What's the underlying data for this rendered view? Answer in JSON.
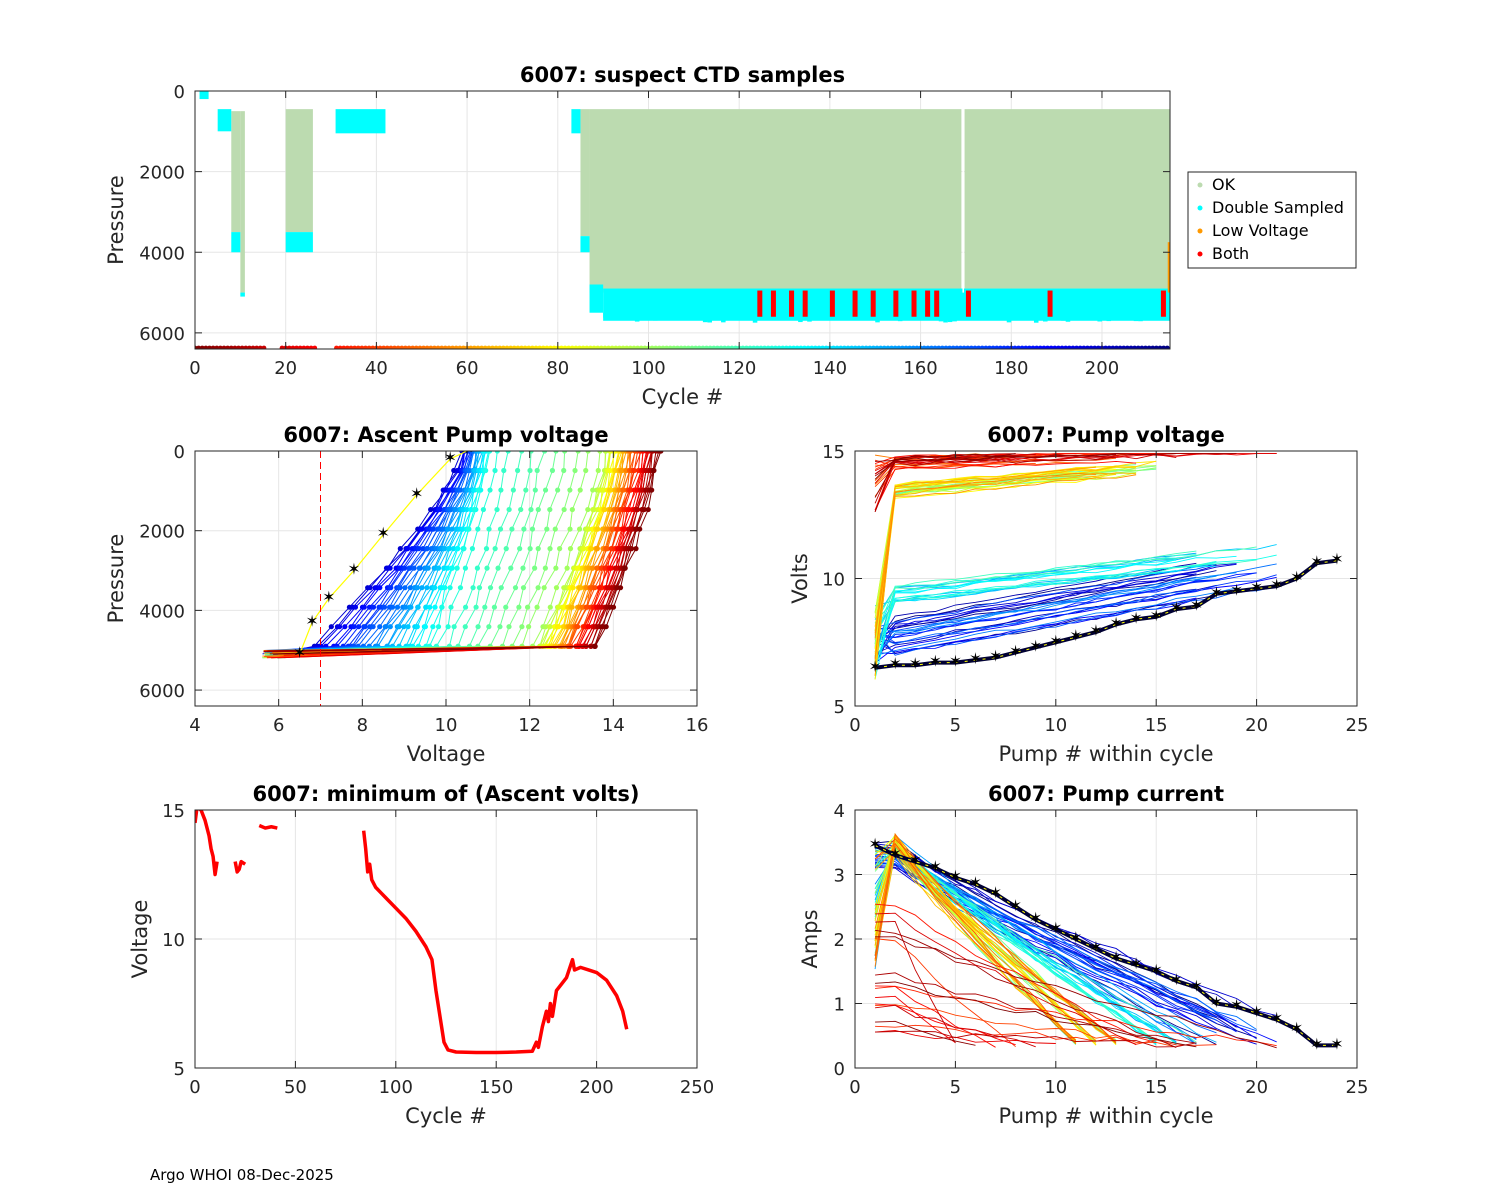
{
  "float_id": "6007",
  "footer": "Argo WHOI 08-Dec-2025",
  "colors": {
    "ok": "#bcdbb0",
    "double_sampled": "#00ffff",
    "low_voltage": "#ff9900",
    "both": "#ff0000",
    "min_volt_line": "#ff0000",
    "threshold": "#ff0000",
    "reference_marker": "#ffff00",
    "reference_line": "#000033"
  },
  "chart_data": [
    {
      "id": "suspect",
      "type": "scatter",
      "title": "6007: suspect CTD samples",
      "xlabel": "Cycle #",
      "ylabel": "Pressure",
      "xlim": [
        0,
        215
      ],
      "ylim": [
        6400,
        0
      ],
      "xticks": [
        0,
        20,
        40,
        60,
        80,
        100,
        120,
        140,
        160,
        180,
        200
      ],
      "yticks": [
        0,
        2000,
        4000,
        6000
      ],
      "ytick_labels": [
        "0",
        "2000",
        "4000",
        "6000"
      ],
      "legend": [
        "OK",
        "Double Sampled",
        "Low Voltage",
        "Both"
      ],
      "ok_bands": [
        [
          8,
          10,
          500,
          3500
        ],
        [
          10,
          11,
          500,
          5000
        ],
        [
          20,
          26,
          450,
          3500
        ],
        [
          85,
          87,
          450,
          3600
        ],
        [
          87,
          169,
          450,
          5000
        ],
        [
          169.7,
          215,
          450,
          4900
        ]
      ],
      "double_bands": [
        [
          1,
          3,
          0,
          200
        ],
        [
          5,
          8,
          450,
          1000
        ],
        [
          8,
          10,
          3500,
          4000
        ],
        [
          10,
          11,
          5000,
          5100
        ],
        [
          20,
          26,
          3500,
          4000
        ],
        [
          31,
          42,
          450,
          1050
        ],
        [
          83,
          85,
          450,
          1050
        ],
        [
          85,
          87,
          3600,
          4000
        ],
        [
          87,
          90,
          4800,
          5500
        ],
        [
          90,
          215,
          4900,
          5700
        ]
      ],
      "both_cycles": [
        124,
        127,
        131,
        134,
        140,
        145,
        149,
        154,
        158,
        161,
        163,
        170,
        188,
        213
      ],
      "low_voltage_band": [
        214.5,
        215,
        3750,
        5000
      ]
    },
    {
      "id": "ascent_pump_voltage",
      "type": "line",
      "title": "6007: Ascent Pump voltage",
      "xlabel": "Voltage",
      "ylabel": "Pressure",
      "xlim": [
        4,
        16
      ],
      "ylim": [
        6400,
        0
      ],
      "xticks": [
        4,
        6,
        8,
        10,
        12,
        14,
        16
      ],
      "yticks": [
        0,
        2000,
        4000,
        6000
      ],
      "ytick_labels": [
        "0",
        "2000",
        "4000",
        "6000"
      ],
      "threshold_voltage": 7,
      "reference_profile": [
        [
          6.5,
          5100
        ],
        [
          6.8,
          4300
        ],
        [
          7.2,
          3700
        ],
        [
          7.8,
          3000
        ],
        [
          8.5,
          2100
        ],
        [
          9.3,
          1100
        ],
        [
          10.1,
          200
        ],
        [
          10.5,
          0
        ]
      ]
    },
    {
      "id": "pump_voltage",
      "type": "line",
      "title": "6007: Pump voltage",
      "xlabel": "Pump # within cycle",
      "ylabel": "Volts",
      "xlim": [
        0,
        25
      ],
      "ylim": [
        5,
        15
      ],
      "xticks": [
        0,
        5,
        10,
        15,
        20,
        25
      ],
      "yticks": [
        5,
        10,
        15
      ],
      "reference_curve": [
        [
          1,
          6.5
        ],
        [
          2,
          6.6
        ],
        [
          3,
          6.6
        ],
        [
          4,
          6.7
        ],
        [
          5,
          6.7
        ],
        [
          6,
          6.8
        ],
        [
          7,
          6.9
        ],
        [
          8,
          7.1
        ],
        [
          9,
          7.3
        ],
        [
          10,
          7.5
        ],
        [
          11,
          7.7
        ],
        [
          12,
          7.9
        ],
        [
          13,
          8.2
        ],
        [
          14,
          8.4
        ],
        [
          15,
          8.5
        ],
        [
          16,
          8.8
        ],
        [
          17,
          8.9
        ],
        [
          18,
          9.4
        ],
        [
          19,
          9.5
        ],
        [
          20,
          9.6
        ],
        [
          21,
          9.7
        ],
        [
          22,
          10.0
        ],
        [
          23,
          10.6
        ],
        [
          24,
          10.7
        ]
      ]
    },
    {
      "id": "min_ascent_volts",
      "type": "line",
      "title": "6007: minimum of (Ascent volts)",
      "xlabel": "Cycle #",
      "ylabel": "Voltage",
      "xlim": [
        0,
        250
      ],
      "ylim": [
        5,
        15
      ],
      "xticks": [
        0,
        50,
        100,
        150,
        200,
        250
      ],
      "yticks": [
        5,
        10,
        15
      ],
      "segments": [
        [
          [
            0,
            14.5
          ],
          [
            1,
            15.1
          ],
          [
            3,
            15.0
          ],
          [
            5,
            14.6
          ],
          [
            7,
            14.0
          ],
          [
            8,
            13.5
          ],
          [
            9,
            13.2
          ],
          [
            10,
            12.5
          ],
          [
            11,
            13.0
          ]
        ],
        [
          [
            20,
            13.0
          ],
          [
            21,
            12.6
          ],
          [
            22,
            12.7
          ],
          [
            23,
            13.0
          ],
          [
            25,
            12.9
          ]
        ],
        [
          [
            32,
            14.4
          ],
          [
            35,
            14.3
          ],
          [
            38,
            14.35
          ],
          [
            41,
            14.3
          ]
        ],
        [
          [
            84,
            14.2
          ],
          [
            85,
            13.5
          ],
          [
            86,
            12.6
          ],
          [
            87,
            12.9
          ],
          [
            88,
            12.3
          ],
          [
            90,
            12.0
          ],
          [
            95,
            11.6
          ],
          [
            100,
            11.2
          ],
          [
            105,
            10.8
          ],
          [
            110,
            10.3
          ],
          [
            115,
            9.7
          ],
          [
            118,
            9.2
          ],
          [
            120,
            8.0
          ],
          [
            122,
            7.0
          ],
          [
            124,
            6.0
          ],
          [
            126,
            5.7
          ],
          [
            130,
            5.62
          ],
          [
            140,
            5.6
          ],
          [
            150,
            5.6
          ],
          [
            160,
            5.62
          ],
          [
            168,
            5.65
          ],
          [
            170,
            6.0
          ],
          [
            171,
            5.8
          ],
          [
            173,
            6.6
          ],
          [
            175,
            7.2
          ],
          [
            176,
            6.8
          ],
          [
            177,
            7.5
          ],
          [
            178,
            7.0
          ],
          [
            180,
            8.0
          ],
          [
            182,
            8.2
          ],
          [
            185,
            8.5
          ],
          [
            188,
            9.2
          ],
          [
            189,
            8.8
          ],
          [
            192,
            8.9
          ],
          [
            196,
            8.8
          ],
          [
            200,
            8.7
          ],
          [
            205,
            8.4
          ],
          [
            210,
            7.8
          ],
          [
            213,
            7.2
          ],
          [
            215,
            6.5
          ]
        ]
      ]
    },
    {
      "id": "pump_current",
      "type": "line",
      "title": "6007: Pump current",
      "xlabel": "Pump # within cycle",
      "ylabel": "Amps",
      "xlim": [
        0,
        25
      ],
      "ylim": [
        0,
        4
      ],
      "xticks": [
        0,
        5,
        10,
        15,
        20,
        25
      ],
      "yticks": [
        0,
        1,
        2,
        3,
        4
      ],
      "reference_curve": [
        [
          1,
          3.45
        ],
        [
          2,
          3.3
        ],
        [
          3,
          3.2
        ],
        [
          4,
          3.1
        ],
        [
          5,
          2.95
        ],
        [
          6,
          2.85
        ],
        [
          7,
          2.7
        ],
        [
          8,
          2.5
        ],
        [
          9,
          2.3
        ],
        [
          10,
          2.15
        ],
        [
          11,
          2.0
        ],
        [
          12,
          1.85
        ],
        [
          13,
          1.7
        ],
        [
          14,
          1.6
        ],
        [
          15,
          1.5
        ],
        [
          16,
          1.35
        ],
        [
          17,
          1.25
        ],
        [
          18,
          1.0
        ],
        [
          19,
          0.95
        ],
        [
          20,
          0.85
        ],
        [
          21,
          0.75
        ],
        [
          22,
          0.6
        ],
        [
          23,
          0.35
        ],
        [
          24,
          0.35
        ]
      ]
    }
  ]
}
